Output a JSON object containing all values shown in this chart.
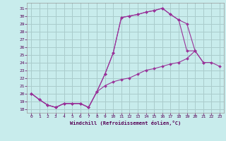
{
  "xlabel": "Windchill (Refroidissement éolien,°C)",
  "bg_color": "#c8ecec",
  "grid_color": "#aacccc",
  "line_color": "#993399",
  "xlim": [
    -0.5,
    23.5
  ],
  "ylim": [
    17.5,
    31.7
  ],
  "yticks": [
    18,
    19,
    20,
    21,
    22,
    23,
    24,
    25,
    26,
    27,
    28,
    29,
    30,
    31
  ],
  "xticks": [
    0,
    1,
    2,
    3,
    4,
    5,
    6,
    7,
    8,
    9,
    10,
    11,
    12,
    13,
    14,
    15,
    16,
    17,
    18,
    19,
    20,
    21,
    22,
    23
  ],
  "series1_x": [
    0,
    1,
    2,
    3,
    4,
    5,
    6,
    7,
    8,
    9,
    10,
    11,
    12,
    13,
    14,
    15,
    16,
    17,
    18,
    19,
    20,
    21
  ],
  "series1_y": [
    20.0,
    19.2,
    18.5,
    18.2,
    18.7,
    18.7,
    18.7,
    18.2,
    20.2,
    22.5,
    25.2,
    29.8,
    30.0,
    30.2,
    30.5,
    30.7,
    31.0,
    30.2,
    29.5,
    29.0,
    25.5,
    24.0
  ],
  "series2_x": [
    0,
    1,
    2,
    3,
    4,
    5,
    6,
    7,
    8,
    9,
    10,
    11,
    12,
    13,
    14,
    15,
    16,
    17,
    18,
    19,
    20,
    21,
    22,
    23
  ],
  "series2_y": [
    20.0,
    19.2,
    18.5,
    18.2,
    18.7,
    18.7,
    18.7,
    18.2,
    20.2,
    22.5,
    25.2,
    29.8,
    30.0,
    30.2,
    30.5,
    30.7,
    31.0,
    30.2,
    29.5,
    25.5,
    25.5,
    24.0,
    24.0,
    23.5
  ],
  "series3_x": [
    0,
    1,
    2,
    3,
    4,
    5,
    6,
    7,
    8,
    9,
    10,
    11,
    12,
    13,
    14,
    15,
    16,
    17,
    18,
    19,
    20
  ],
  "series3_y": [
    20.0,
    19.2,
    18.5,
    18.2,
    18.7,
    18.7,
    18.7,
    18.2,
    20.2,
    21.0,
    21.5,
    21.8,
    22.0,
    22.5,
    23.0,
    23.2,
    23.5,
    23.8,
    24.0,
    24.5,
    25.5
  ]
}
